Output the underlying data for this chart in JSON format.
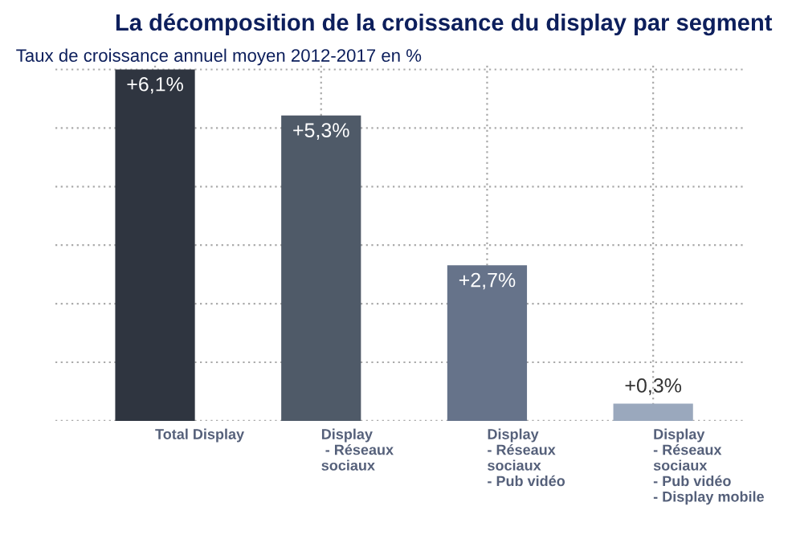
{
  "chart_data": {
    "type": "bar",
    "title": "La décomposition de la croissance du display par segment",
    "subtitle": "Taux de croissance annuel moyen 2012-2017 en %",
    "categories": [
      "Total Display",
      "Display\n - Réseaux\nsociaux",
      "Display\n- Réseaux\nsociaux\n- Pub vidéo",
      "Display\n- Réseaux\nsociaux\n- Pub vidéo\n- Display mobile"
    ],
    "values": [
      6.1,
      5.3,
      2.7,
      0.3
    ],
    "colors": [
      "#2f3540",
      "#4f5a68",
      "#66738a",
      "#9aa8bd"
    ],
    "value_labels": [
      "+6,1%",
      "+5,3%",
      "+2,7%",
      "+0,3%"
    ],
    "grid": true,
    "tick_labels": "x"
  }
}
